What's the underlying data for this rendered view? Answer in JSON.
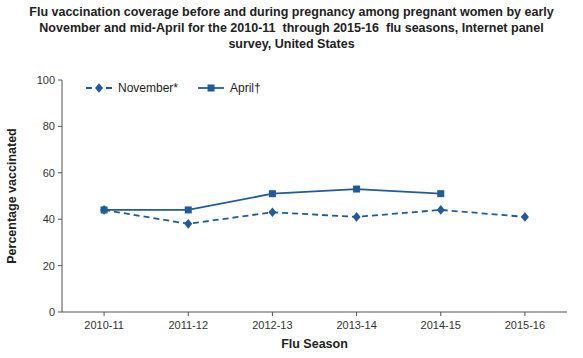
{
  "chart_data": {
    "type": "line",
    "title": [
      "Flu vaccination coverage before and during pregnancy among pregnant women by early",
      "November and mid-April for the 2010-11  through 2015-16  flu seasons, Internet panel",
      "survey, United States"
    ],
    "x_label": "Flu Season",
    "y_label": "Percentage vaccinated",
    "categories": [
      "2010-11",
      "2011-12",
      "2012-13",
      "2013-14",
      "2014-15",
      "2015-16"
    ],
    "series": [
      {
        "name": "November*",
        "color": "#1f5c99",
        "line_style": "dashed",
        "marker": "diamond",
        "values": [
          44,
          38,
          43,
          41,
          44,
          41
        ]
      },
      {
        "name": "April†",
        "color": "#1f5c99",
        "line_style": "solid",
        "marker": "square",
        "values": [
          44,
          44,
          51,
          53,
          51,
          null
        ]
      }
    ],
    "ylim": [
      0,
      100
    ],
    "yticks": [
      0,
      20,
      40,
      60,
      80,
      100
    ],
    "grid": false,
    "legend": "upper left"
  }
}
